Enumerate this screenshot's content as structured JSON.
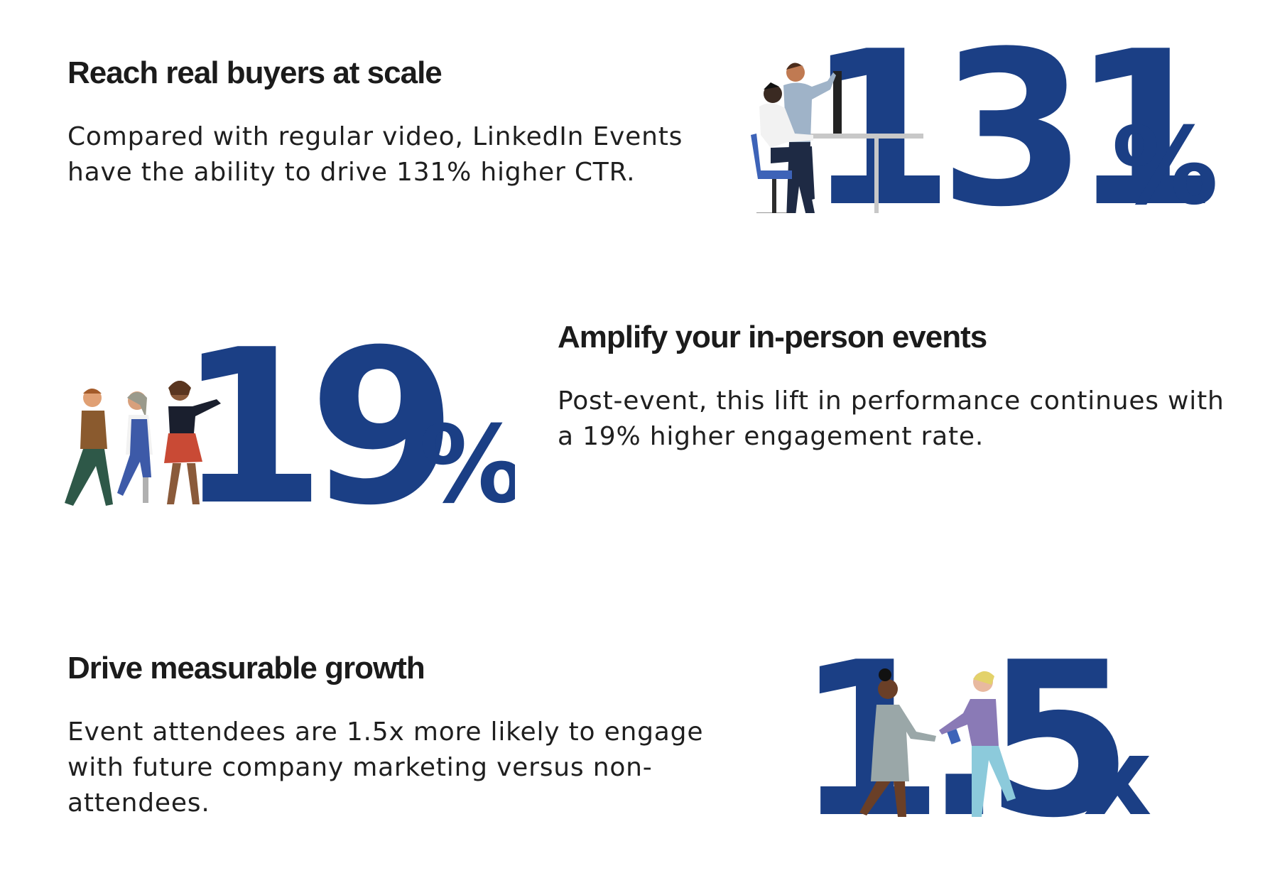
{
  "colors": {
    "accent_navy": "#1b3f85",
    "heading_text": "#1b1b1b",
    "body_text": "#1f1f1f"
  },
  "sections": [
    {
      "heading": "Reach real buyers at scale",
      "body": "Compared with regular video, LinkedIn Events have the ability to drive 131% higher CTR.",
      "stat_number": "131",
      "stat_suffix": "%",
      "illustration": "person-at-desk-illustration"
    },
    {
      "heading": "Amplify your in-person events",
      "body": "Post-event, this lift in performance continues with a 19% higher engagement rate.",
      "stat_number": "19",
      "stat_suffix": "%",
      "illustration": "people-walking-illustration"
    },
    {
      "heading": "Drive measurable growth",
      "body": "Event attendees are 1.5x more likely to engage with future company marketing versus non-attendees.",
      "stat_number": "1.5",
      "stat_suffix": "x",
      "illustration": "handshake-illustration"
    }
  ]
}
